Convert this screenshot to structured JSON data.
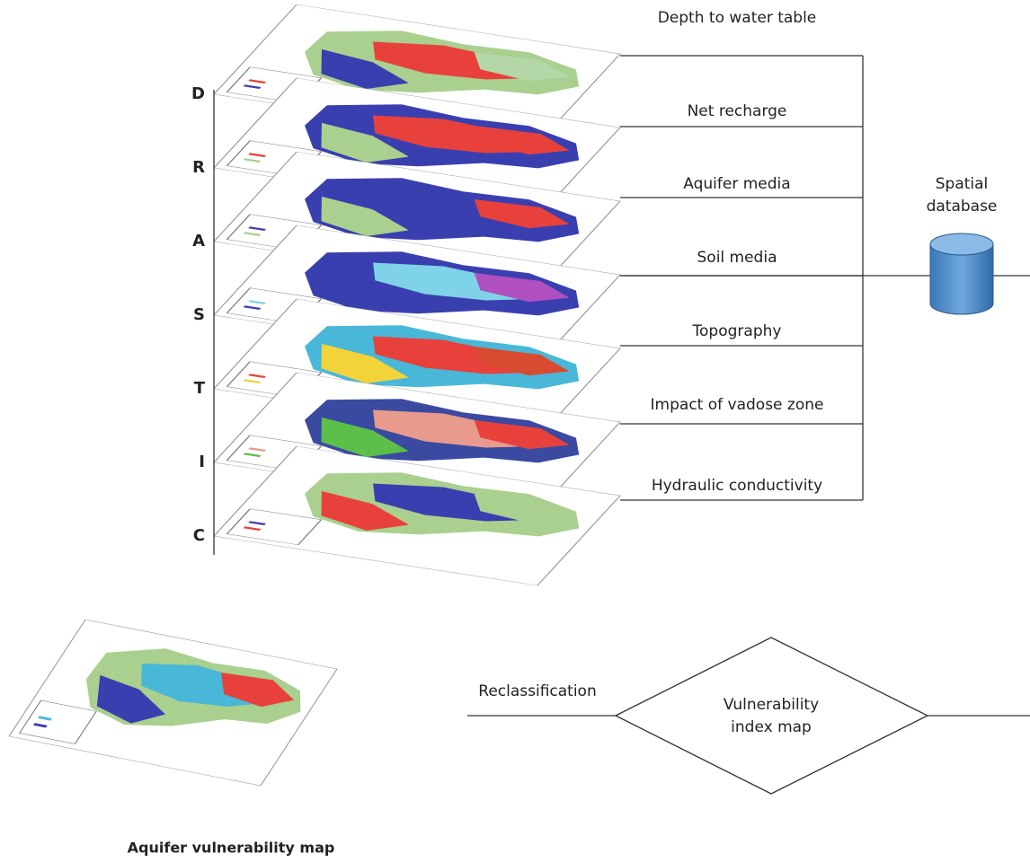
{
  "layers": [
    {
      "letter": "D",
      "label": "Depth to water table"
    },
    {
      "letter": "R",
      "label": "Net recharge"
    },
    {
      "letter": "A",
      "label": "Aquifer media"
    },
    {
      "letter": "S",
      "label": "Soil media"
    },
    {
      "letter": "T",
      "label": "Topography"
    },
    {
      "letter": "I",
      "label": "Impact of vadose zone"
    },
    {
      "letter": "C",
      "label": "Hydraulic conductivity"
    }
  ],
  "database": {
    "lines": [
      "Spatial",
      "database"
    ]
  },
  "edge_label": "Reclassification",
  "index_node": {
    "lines": [
      "Vulnerability",
      "index map"
    ]
  },
  "output": {
    "caption": "Aquifer vulnerability map"
  }
}
